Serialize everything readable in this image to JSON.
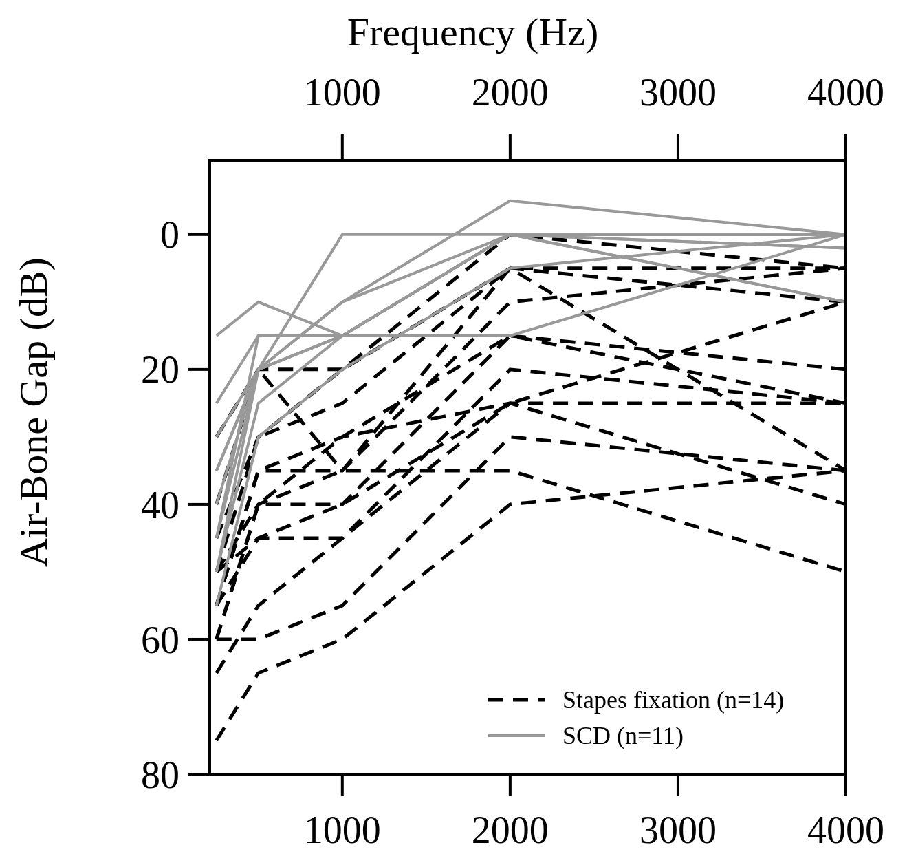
{
  "chart_data": {
    "type": "line",
    "x2label": "Frequency (Hz)",
    "ylabel": "Air-Bone Gap (dB)",
    "x": [
      250,
      500,
      1000,
      2000,
      4000
    ],
    "xlim": [
      210,
      4000
    ],
    "xticks": [
      1000,
      2000,
      3000,
      4000
    ],
    "x2lim": [
      210,
      4000
    ],
    "x2ticks": [
      1000,
      2000,
      3000,
      4000
    ],
    "ylim": [
      80,
      -11
    ],
    "yticks": [
      0,
      20,
      40,
      60,
      80
    ],
    "grid": false,
    "legend": "bottom right",
    "series": [
      {
        "name": "Stapes fixation (n=14)",
        "color": "#000000",
        "line_style": "dashed",
        "values": [
          30,
          20,
          20,
          0,
          5
        ]
      },
      {
        "color": "#000000",
        "line_style": "dashed",
        "values": [
          40,
          20,
          35,
          5,
          35
        ]
      },
      {
        "color": "#000000",
        "line_style": "dashed",
        "values": [
          50,
          30,
          25,
          5,
          10
        ]
      },
      {
        "color": "#000000",
        "line_style": "dashed",
        "values": [
          55,
          35,
          35,
          10,
          5
        ]
      },
      {
        "color": "#000000",
        "line_style": "dashed",
        "values": [
          60,
          40,
          30,
          15,
          20
        ]
      },
      {
        "color": "#000000",
        "line_style": "dashed",
        "values": [
          60,
          40,
          40,
          15,
          25
        ]
      },
      {
        "color": "#000000",
        "line_style": "dashed",
        "values": [
          50,
          45,
          45,
          20,
          25
        ]
      },
      {
        "color": "#000000",
        "line_style": "dashed",
        "values": [
          55,
          35,
          30,
          25,
          25
        ]
      },
      {
        "color": "#000000",
        "line_style": "dashed",
        "values": [
          65,
          55,
          45,
          25,
          40
        ]
      },
      {
        "color": "#000000",
        "line_style": "dashed",
        "values": [
          60,
          60,
          55,
          30,
          35
        ]
      },
      {
        "color": "#000000",
        "line_style": "dashed",
        "values": [
          75,
          65,
          60,
          40,
          35
        ]
      },
      {
        "color": "#000000",
        "line_style": "dashed",
        "values": [
          50,
          40,
          35,
          35,
          50
        ]
      },
      {
        "color": "#000000",
        "line_style": "dashed",
        "values": [
          45,
          30,
          20,
          5,
          5
        ]
      },
      {
        "color": "#000000",
        "line_style": "dashed",
        "values": [
          55,
          45,
          40,
          25,
          10
        ]
      },
      {
        "name": "SCD (n=11)",
        "color": "#999999",
        "line_style": "solid",
        "values": [
          15,
          10,
          15,
          0,
          0
        ]
      },
      {
        "color": "#999999",
        "line_style": "solid",
        "values": [
          25,
          15,
          15,
          15,
          0
        ]
      },
      {
        "color": "#999999",
        "line_style": "solid",
        "values": [
          30,
          20,
          0,
          0,
          2
        ]
      },
      {
        "color": "#999999",
        "line_style": "solid",
        "values": [
          35,
          20,
          15,
          0,
          0
        ]
      },
      {
        "color": "#999999",
        "line_style": "solid",
        "values": [
          45,
          20,
          10,
          -5,
          0
        ]
      },
      {
        "color": "#999999",
        "line_style": "solid",
        "values": [
          50,
          25,
          15,
          0,
          10
        ]
      },
      {
        "color": "#999999",
        "line_style": "solid",
        "values": [
          55,
          30,
          20,
          5,
          0
        ]
      },
      {
        "color": "#999999",
        "line_style": "solid",
        "values": [
          45,
          15,
          15,
          0,
          2
        ]
      },
      {
        "color": "#999999",
        "line_style": "solid",
        "values": [
          40,
          20,
          10,
          0,
          0
        ]
      },
      {
        "color": "#999999",
        "line_style": "solid",
        "values": [
          35,
          20,
          15,
          0,
          10
        ]
      },
      {
        "color": "#999999",
        "line_style": "solid",
        "values": [
          50,
          20,
          15,
          0,
          0
        ]
      }
    ]
  }
}
